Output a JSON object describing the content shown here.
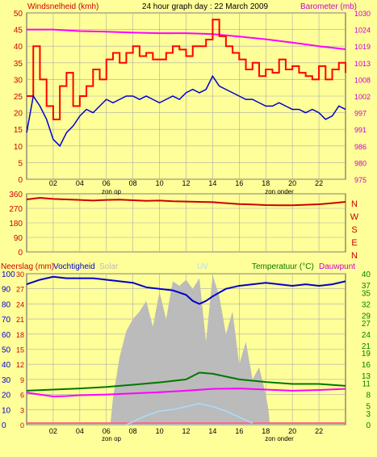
{
  "header": {
    "left_title": "Windsnelheid (kmh)",
    "center_title": "24 hour graph day : 22 March 2009",
    "right_title": "Barometer (mb)"
  },
  "middle": {
    "direction_labels": [
      "N",
      "W",
      "S",
      "E",
      "N"
    ]
  },
  "bottom": {
    "left_title_1": "Neerslag (mm)",
    "left_title_2": "Vochtigheid",
    "solar_label": "Solar",
    "uv_label": "UV",
    "right_title_1": "Temperatuur (°C)",
    "right_title_2": "Dauwpunt"
  },
  "x_ticks": [
    "02",
    "04",
    "06",
    "08",
    "10",
    "12",
    "14",
    "16",
    "18",
    "20",
    "22"
  ],
  "markers": {
    "sunrise": "zon op",
    "sunset": "zon onder"
  },
  "colors": {
    "background": "#ffff99",
    "wind_gust": "#ff0000",
    "wind_avg": "#0000cc",
    "barometer": "#ff00ff",
    "direction": "#cc0000",
    "humidity": "#0000cc",
    "temperature": "#007700",
    "dewpoint": "#ff00ff",
    "solar": "#bbbbbb",
    "uv": "#aaddff",
    "grid": "#aaaaaa",
    "right_axis_text": "#008000"
  },
  "chart_data": [
    {
      "type": "line",
      "title": "24 hour graph day : 22 March 2009",
      "x_range_hours": [
        0,
        24
      ],
      "xticks": [
        "02",
        "04",
        "06",
        "08",
        "10",
        "12",
        "14",
        "16",
        "18",
        "20",
        "22"
      ],
      "left_axis": {
        "label": "Windsnelheid (kmh)",
        "range": [
          0,
          50
        ],
        "ticks": [
          0,
          5,
          10,
          15,
          20,
          25,
          30,
          35,
          40,
          45,
          50
        ]
      },
      "right_axis": {
        "label": "Barometer (mb)",
        "range": [
          975,
          1030
        ],
        "ticks": [
          975,
          980,
          986,
          991,
          997,
          1002,
          1008,
          1013,
          1019,
          1024,
          1030
        ]
      },
      "series": [
        {
          "name": "Windsnelheid gust",
          "axis": "left",
          "x": [
            0,
            0.5,
            1,
            1.5,
            2,
            2.5,
            3,
            3.5,
            4,
            4.5,
            5,
            5.5,
            6,
            6.5,
            7,
            7.5,
            8,
            8.5,
            9,
            9.5,
            10,
            10.5,
            11,
            11.5,
            12,
            12.5,
            13,
            13.5,
            14,
            14.5,
            15,
            15.5,
            16,
            16.5,
            17,
            17.5,
            18,
            18.5,
            19,
            19.5,
            20,
            20.5,
            21,
            21.5,
            22,
            22.5,
            23,
            23.5,
            24
          ],
          "values": [
            25,
            40,
            30,
            22,
            18,
            28,
            32,
            22,
            25,
            28,
            33,
            30,
            36,
            38,
            35,
            38,
            40,
            37,
            38,
            36,
            36,
            38,
            40,
            39,
            37,
            40,
            40,
            42,
            48,
            43,
            40,
            38,
            36,
            33,
            35,
            31,
            33,
            32,
            36,
            33,
            34,
            32,
            31,
            30,
            34,
            30,
            33,
            35,
            32
          ]
        },
        {
          "name": "Windsnelheid gemiddeld",
          "axis": "left",
          "x": [
            0,
            0.5,
            1,
            1.5,
            2,
            2.5,
            3,
            3.5,
            4,
            4.5,
            5,
            5.5,
            6,
            6.5,
            7,
            7.5,
            8,
            8.5,
            9,
            9.5,
            10,
            10.5,
            11,
            11.5,
            12,
            12.5,
            13,
            13.5,
            14,
            14.5,
            15,
            15.5,
            16,
            16.5,
            17,
            17.5,
            18,
            18.5,
            19,
            19.5,
            20,
            20.5,
            21,
            21.5,
            22,
            22.5,
            23,
            23.5,
            24
          ],
          "values": [
            14,
            25,
            22,
            18,
            12,
            10,
            14,
            16,
            19,
            21,
            20,
            22,
            24,
            23,
            24,
            25,
            25,
            24,
            25,
            24,
            23,
            24,
            25,
            24,
            26,
            27,
            26,
            27,
            31,
            28,
            27,
            26,
            25,
            24,
            24,
            23,
            22,
            22,
            23,
            22,
            21,
            21,
            20,
            21,
            20,
            18,
            19,
            22,
            21
          ]
        },
        {
          "name": "Barometer",
          "axis": "right",
          "x": [
            0,
            2,
            4,
            6,
            8,
            10,
            12,
            14,
            16,
            18,
            20,
            22,
            24
          ],
          "values": [
            1024.5,
            1024.5,
            1024.0,
            1023.8,
            1023.5,
            1023.3,
            1023.3,
            1023.0,
            1022.2,
            1021.3,
            1020.2,
            1019.0,
            1018.0
          ]
        }
      ]
    },
    {
      "type": "line",
      "x_range_hours": [
        0,
        24
      ],
      "y_axis": {
        "range": [
          0,
          360
        ],
        "ticks": [
          0,
          90,
          180,
          270,
          360
        ]
      },
      "series": [
        {
          "name": "Windrichting",
          "x": [
            0,
            1,
            2,
            3,
            4,
            5,
            6,
            7,
            8,
            9,
            10,
            11,
            12,
            13,
            14,
            15,
            16,
            17,
            18,
            19,
            20,
            21,
            22,
            23,
            24
          ],
          "values": [
            325,
            335,
            328,
            325,
            322,
            318,
            322,
            324,
            320,
            316,
            318,
            314,
            312,
            310,
            308,
            302,
            296,
            294,
            290,
            289,
            289,
            292,
            295,
            302,
            310
          ]
        }
      ]
    },
    {
      "type": "line",
      "x_range_hours": [
        0,
        24
      ],
      "left_axis": {
        "range": [
          0,
          100
        ],
        "ticks": [
          0,
          10,
          20,
          30,
          40,
          50,
          60,
          70,
          80,
          90,
          100
        ],
        "precipitation_ticks": [
          0,
          3,
          6,
          9,
          12,
          15,
          18,
          21,
          24,
          27,
          30
        ]
      },
      "right_axis": {
        "range": [
          0,
          40
        ],
        "ticks": [
          0,
          3,
          5,
          8,
          11,
          13,
          16,
          19,
          21,
          24,
          27,
          29,
          32,
          35,
          37,
          40
        ]
      },
      "series": [
        {
          "name": "Vochtigheid",
          "axis": "left",
          "x": [
            0,
            1,
            2,
            3,
            4,
            5,
            6,
            7,
            8,
            9,
            10,
            11,
            12,
            12.5,
            13,
            13.5,
            14,
            15,
            16,
            17,
            18,
            19,
            20,
            21,
            22,
            23,
            24
          ],
          "values": [
            93,
            96,
            98,
            97,
            97,
            97,
            96,
            95,
            94,
            91,
            90,
            89,
            86,
            82,
            80,
            82,
            85,
            90,
            92,
            93,
            94,
            93,
            92,
            93,
            92,
            93,
            95
          ]
        },
        {
          "name": "Temperatuur",
          "axis": "right",
          "x": [
            0,
            2,
            4,
            6,
            8,
            10,
            12,
            13,
            14,
            16,
            18,
            20,
            22,
            24
          ],
          "values": [
            9,
            9.3,
            9.6,
            10,
            10.6,
            11.2,
            12,
            13.8,
            13.5,
            12,
            11.3,
            10.8,
            10.8,
            10.3
          ]
        },
        {
          "name": "Dauwpunt",
          "axis": "right",
          "x": [
            0,
            1,
            2,
            3,
            4,
            6,
            8,
            10,
            12,
            14,
            16,
            18,
            20,
            22,
            24
          ],
          "values": [
            8.5,
            8.0,
            7.5,
            7.6,
            7.8,
            8.0,
            8.3,
            8.6,
            9.0,
            9.5,
            9.6,
            9.3,
            9.0,
            9.2,
            9.5
          ]
        },
        {
          "name": "Solar",
          "axis": "left",
          "x": [
            6.3,
            6.5,
            7,
            7.5,
            8,
            8.5,
            9,
            9.5,
            10,
            10.5,
            11,
            11.5,
            12,
            12.5,
            13,
            13.5,
            14,
            14.5,
            15,
            15.5,
            16,
            16.5,
            17,
            17.5,
            18,
            18.2,
            18.3
          ],
          "values": [
            0,
            18,
            45,
            62,
            70,
            75,
            82,
            65,
            88,
            70,
            95,
            92,
            96,
            90,
            97,
            55,
            99,
            85,
            60,
            75,
            40,
            55,
            30,
            38,
            20,
            10,
            0
          ]
        },
        {
          "name": "UV",
          "axis": "left",
          "x": [
            7.5,
            8,
            9,
            10,
            11,
            12,
            13,
            14,
            15,
            16,
            17
          ],
          "values": [
            0,
            2,
            6,
            9,
            10,
            12,
            14,
            12,
            9,
            5,
            1
          ]
        }
      ]
    }
  ]
}
